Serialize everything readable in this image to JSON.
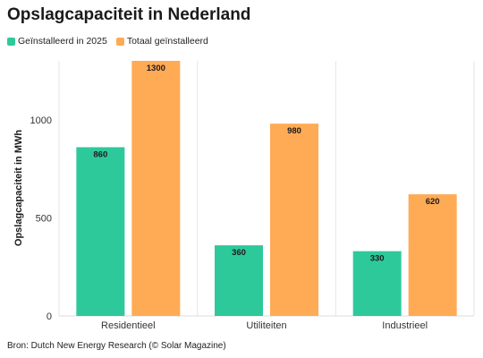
{
  "title": "Opslagcapaciteit in Nederland",
  "source": "Bron: Dutch New Energy Research (© Solar Magazine)",
  "colors": {
    "installed_2025": "#2ec99b",
    "total_installed": "#ffaa55"
  },
  "chart_data": {
    "type": "bar",
    "title": "Opslagcapaciteit in Nederland",
    "categories": [
      "Residentieel",
      "Utiliteiten",
      "Industrieel"
    ],
    "series": [
      {
        "name": "Geïnstalleerd in 2025",
        "values": [
          860,
          360,
          330
        ]
      },
      {
        "name": "Totaal geïnstalleerd",
        "values": [
          1300,
          980,
          620
        ]
      }
    ],
    "xlabel": "",
    "ylabel": "Opslagcapaciteit in MWh",
    "ylim": [
      0,
      1300
    ],
    "yticks": [
      0,
      500,
      1000
    ],
    "grid": "vertical-separators",
    "legend": "top-left"
  }
}
